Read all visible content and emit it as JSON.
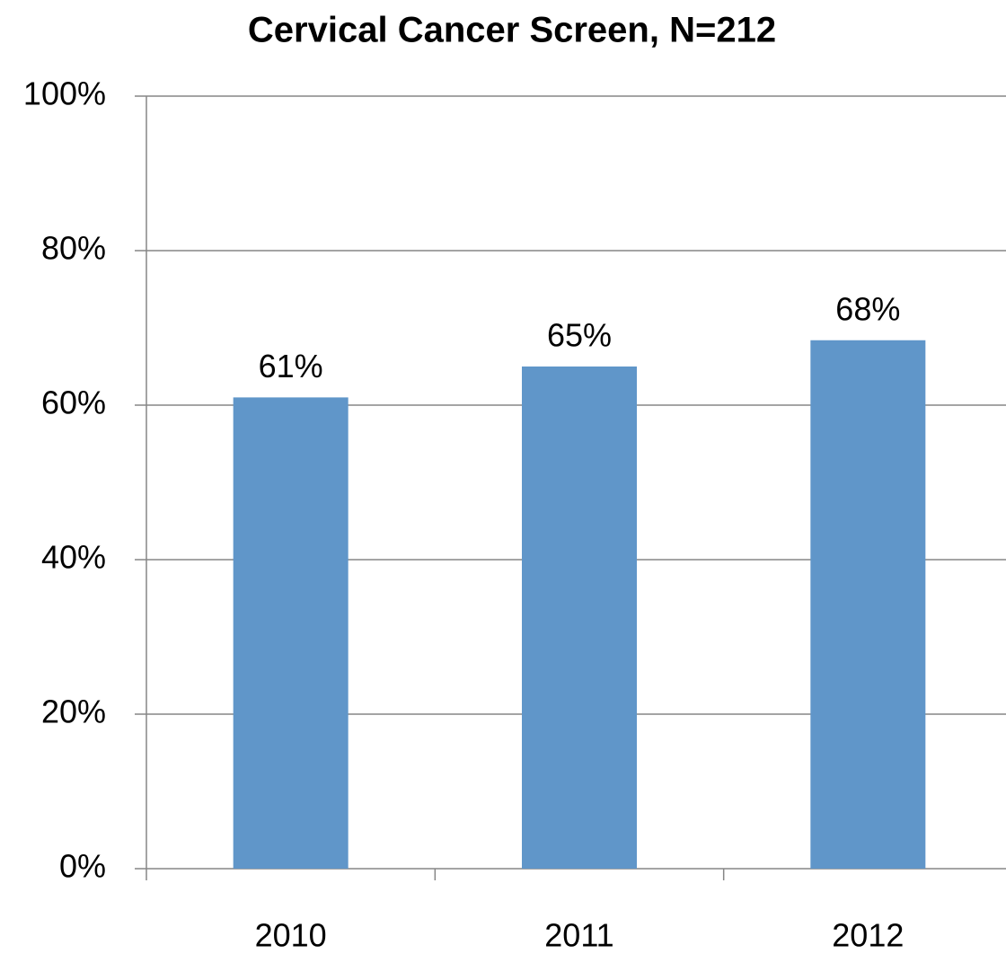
{
  "chart_data": {
    "type": "bar",
    "title": "Cervical Cancer Screen, N=212",
    "categories": [
      "2010",
      "2011",
      "2012"
    ],
    "values": [
      61,
      65,
      68.4
    ],
    "value_labels": [
      "61%",
      "65%",
      "68%"
    ],
    "color": "#6096c9",
    "ylim": [
      0,
      100
    ],
    "yticks": [
      {
        "value": 0,
        "label": "0%"
      },
      {
        "value": 20,
        "label": "20%"
      },
      {
        "value": 40,
        "label": "40%"
      },
      {
        "value": 60,
        "label": "60%"
      },
      {
        "value": 80,
        "label": "80%"
      },
      {
        "value": 100,
        "label": "100%"
      }
    ],
    "grid": true
  }
}
